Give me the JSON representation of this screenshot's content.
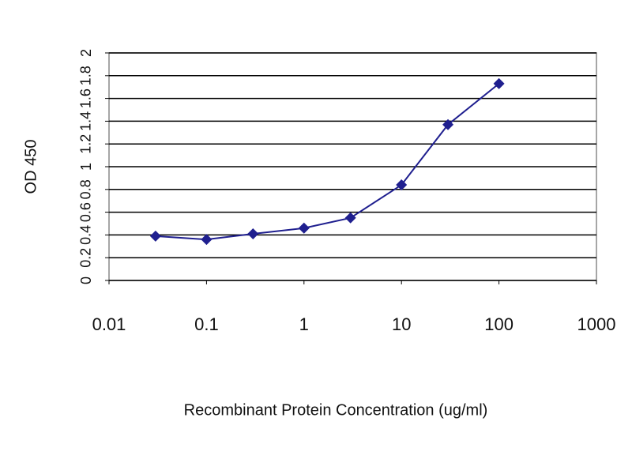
{
  "chart_data": {
    "type": "line",
    "x": [
      0.03,
      0.1,
      0.3,
      1,
      3,
      10,
      30,
      100
    ],
    "values": [
      0.39,
      0.36,
      0.41,
      0.46,
      0.55,
      0.84,
      1.37,
      1.73
    ],
    "color": "#1f1f8f",
    "xscale": "log",
    "xlim": [
      0.01,
      1000
    ],
    "xticks": [
      0.01,
      0.1,
      1,
      10,
      100,
      1000
    ],
    "ylim": [
      0,
      2
    ],
    "yticks": [
      0,
      0.2,
      0.4,
      0.6,
      0.8,
      1,
      1.2,
      1.4,
      1.6,
      1.8,
      2
    ],
    "grid": true,
    "xlabel": "Recombinant Protein Concentration (ug/ml)",
    "ylabel": "OD 450"
  }
}
